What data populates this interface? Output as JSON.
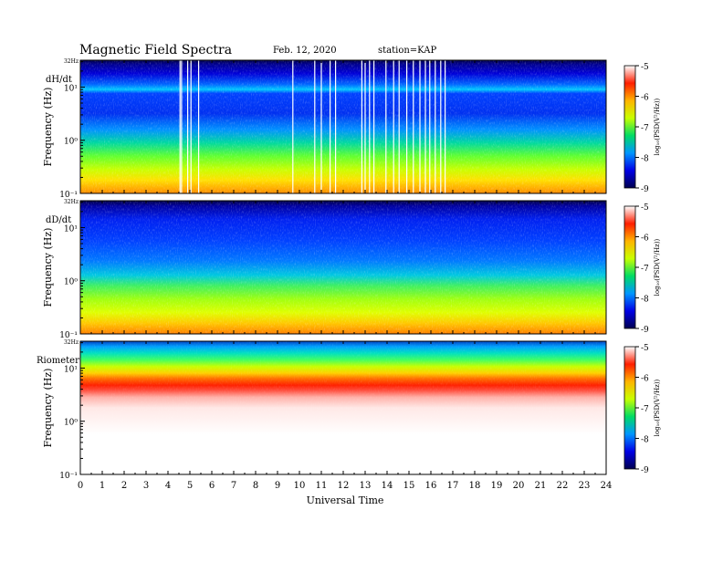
{
  "header": {
    "title": "Magnetic  Field  Spectra",
    "date": "Feb. 12, 2020",
    "station": "station=KAP"
  },
  "chart_data": {
    "type": "heatmap",
    "xlabel": "Universal Time",
    "x_ticks": [
      "0",
      "1",
      "2",
      "3",
      "4",
      "5",
      "6",
      "7",
      "8",
      "9",
      "10",
      "11",
      "12",
      "13",
      "14",
      "15",
      "16",
      "17",
      "18",
      "19",
      "20",
      "21",
      "22",
      "23",
      "24"
    ],
    "xlim": [
      0,
      24
    ],
    "y_scale": "log",
    "y_ticks": [
      {
        "value": 10,
        "label": "10¹"
      },
      {
        "value": 1,
        "label": "10⁰"
      },
      {
        "value": 0.1,
        "label": "10⁻¹"
      }
    ],
    "y_top_label": "32Hz",
    "ylim": [
      0.1,
      32
    ],
    "colorbar": {
      "ticks": [
        "-5",
        "-6",
        "-7",
        "-8",
        "-9"
      ],
      "range": [
        -9,
        -5
      ],
      "colors": [
        "#000050",
        "#0000e6",
        "#0096ff",
        "#00dc64",
        "#c8ff00",
        "#ffb400",
        "#ff1e00",
        "#ffffff"
      ]
    },
    "panels": [
      {
        "name": "dH/dt",
        "ylabel": "Frequency  (Hz)",
        "colorbar_label": "log₁₀(PSD(V²/Hz))",
        "data_gaps_ut": [
          4.55,
          4.62,
          4.9,
          5.05,
          5.4,
          9.7,
          10.7,
          11.0,
          11.4,
          11.65,
          12.85,
          13.0,
          13.2,
          13.4,
          13.95,
          14.3,
          14.55,
          14.9,
          15.2,
          15.5,
          15.75,
          15.95,
          16.2,
          16.45,
          16.65
        ]
      },
      {
        "name": "dD/dt",
        "ylabel": "Frequency  (Hz)",
        "colorbar_label": "log₁₀(PSD(V²/Hz))",
        "data_gaps_ut": []
      },
      {
        "name": "Riometer",
        "ylabel": "Frequency  (Hz)",
        "colorbar_label": "log₁₀(PSD(V²/Hz))",
        "data_gaps_ut": []
      }
    ]
  }
}
